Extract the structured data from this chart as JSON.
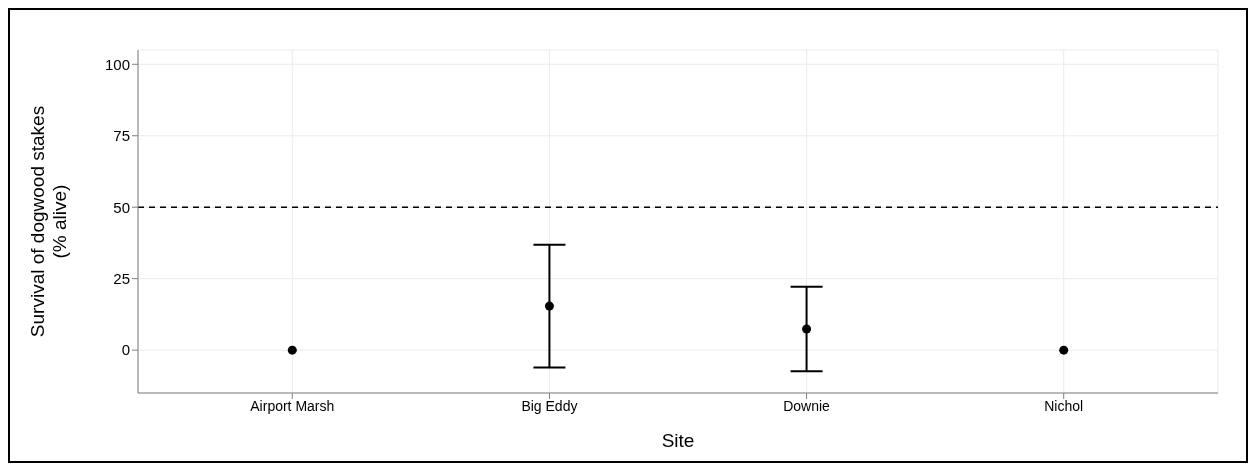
{
  "chart_data": {
    "type": "scatter",
    "categories": [
      "Airport Marsh",
      "Big Eddy",
      "Downie",
      "Nichol"
    ],
    "values": [
      0,
      15.4,
      7.4,
      0
    ],
    "errors": [
      0,
      21.5,
      14.8,
      0
    ],
    "color": "#000000",
    "xlabel": "Site",
    "ylabel": "Survival of dogwood stakes\n(% alive)",
    "ylim": [
      -15,
      105
    ],
    "yticks": [
      0,
      25,
      50,
      75,
      100
    ],
    "ref_lines": [
      {
        "axis": "y",
        "value": 50,
        "line_style": "dashed",
        "color": "#000000"
      }
    ],
    "grid": true,
    "marker": "circle"
  }
}
